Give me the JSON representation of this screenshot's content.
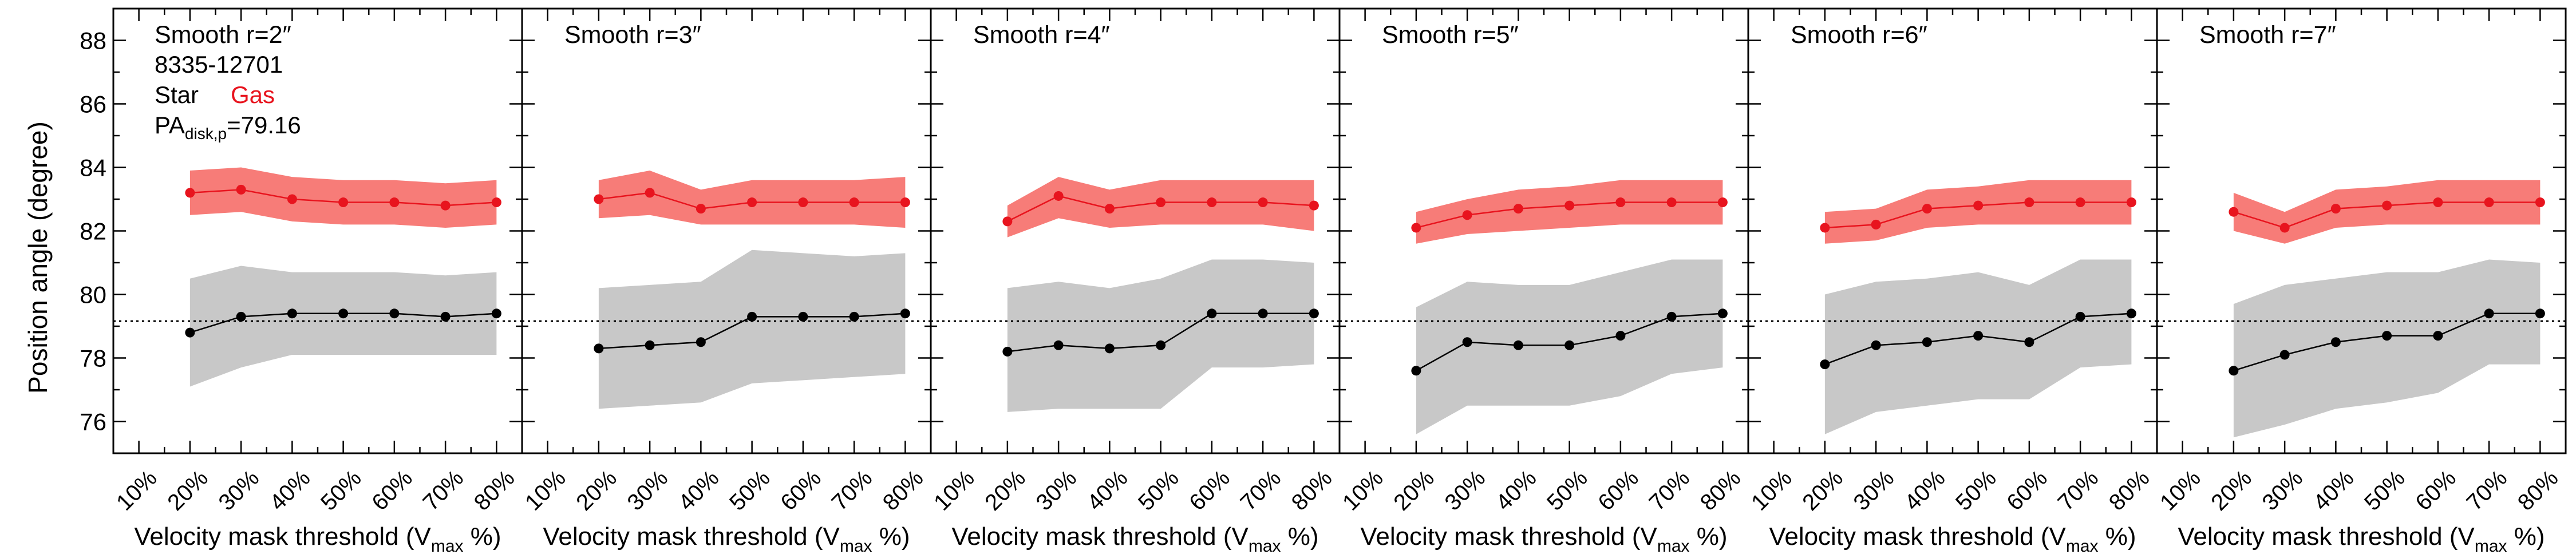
{
  "figure": {
    "ylabel": "Position angle (degree)",
    "xlabel_main": "Velocity mask threshold (V",
    "xlabel_sub": "max",
    "xlabel_end": " %)",
    "x_tick_labels": [
      "10%",
      "20%",
      "30%",
      "40%",
      "50%",
      "60%",
      "70%",
      "80%"
    ],
    "y_tick_labels": [
      "76",
      "78",
      "80",
      "82",
      "84",
      "86",
      "88"
    ],
    "legend": {
      "galaxy_id": "8335-12701",
      "star_label": "Star",
      "gas_label": "Gas",
      "pa_prefix": "PA",
      "pa_sub": "disk,p",
      "pa_suffix": "=79.16"
    },
    "colors": {
      "star_line": "#000000",
      "star_band": "#c8c8c8",
      "gas_line": "#e8141e",
      "gas_band": "#f77c78",
      "reference_line": "#000000"
    }
  },
  "chart_data": [
    {
      "type": "line",
      "title": "Smooth r=2″",
      "xlabel": "Velocity mask threshold (Vmax %)",
      "ylabel": "Position angle (degree)",
      "x": [
        20,
        30,
        40,
        50,
        60,
        70,
        80
      ],
      "xlim": [
        5,
        85
      ],
      "ylim": [
        75,
        89
      ],
      "reference_y": 79.16,
      "series": [
        {
          "name": "Star",
          "values": [
            78.8,
            79.3,
            79.4,
            79.4,
            79.4,
            79.3,
            79.4
          ],
          "lower": [
            77.1,
            77.7,
            78.1,
            78.1,
            78.1,
            78.1,
            78.1
          ],
          "upper": [
            80.5,
            80.9,
            80.7,
            80.7,
            80.7,
            80.6,
            80.7
          ]
        },
        {
          "name": "Gas",
          "values": [
            83.2,
            83.3,
            83.0,
            82.9,
            82.9,
            82.8,
            82.9
          ],
          "lower": [
            82.5,
            82.6,
            82.3,
            82.2,
            82.2,
            82.1,
            82.2
          ],
          "upper": [
            83.9,
            84.0,
            83.7,
            83.6,
            83.6,
            83.5,
            83.6
          ]
        }
      ]
    },
    {
      "type": "line",
      "title": "Smooth r=3″",
      "xlabel": "Velocity mask threshold (Vmax %)",
      "x": [
        20,
        30,
        40,
        50,
        60,
        70,
        80
      ],
      "xlim": [
        5,
        85
      ],
      "ylim": [
        75,
        89
      ],
      "reference_y": 79.16,
      "series": [
        {
          "name": "Star",
          "values": [
            78.3,
            78.4,
            78.5,
            79.3,
            79.3,
            79.3,
            79.4
          ],
          "lower": [
            76.4,
            76.5,
            76.6,
            77.2,
            77.3,
            77.4,
            77.5
          ],
          "upper": [
            80.2,
            80.3,
            80.4,
            81.4,
            81.3,
            81.2,
            81.3
          ]
        },
        {
          "name": "Gas",
          "values": [
            83.0,
            83.2,
            82.7,
            82.9,
            82.9,
            82.9,
            82.9
          ],
          "lower": [
            82.4,
            82.5,
            82.2,
            82.2,
            82.2,
            82.2,
            82.1
          ],
          "upper": [
            83.6,
            83.9,
            83.3,
            83.6,
            83.6,
            83.6,
            83.7
          ]
        }
      ]
    },
    {
      "type": "line",
      "title": "Smooth r=4″",
      "xlabel": "Velocity mask threshold (Vmax %)",
      "x": [
        20,
        30,
        40,
        50,
        60,
        70,
        80
      ],
      "xlim": [
        5,
        85
      ],
      "ylim": [
        75,
        89
      ],
      "reference_y": 79.16,
      "series": [
        {
          "name": "Star",
          "values": [
            78.2,
            78.4,
            78.3,
            78.4,
            79.4,
            79.4,
            79.4
          ],
          "lower": [
            76.3,
            76.4,
            76.4,
            76.4,
            77.7,
            77.7,
            77.8
          ],
          "upper": [
            80.2,
            80.4,
            80.2,
            80.5,
            81.1,
            81.1,
            81.0
          ]
        },
        {
          "name": "Gas",
          "values": [
            82.3,
            83.1,
            82.7,
            82.9,
            82.9,
            82.9,
            82.8
          ],
          "lower": [
            81.8,
            82.4,
            82.1,
            82.2,
            82.2,
            82.2,
            82.0
          ],
          "upper": [
            82.8,
            83.7,
            83.3,
            83.6,
            83.6,
            83.6,
            83.6
          ]
        }
      ]
    },
    {
      "type": "line",
      "title": "Smooth r=5″",
      "xlabel": "Velocity mask threshold (Vmax %)",
      "x": [
        20,
        30,
        40,
        50,
        60,
        70,
        80
      ],
      "xlim": [
        5,
        85
      ],
      "ylim": [
        75,
        89
      ],
      "reference_y": 79.16,
      "series": [
        {
          "name": "Star",
          "values": [
            77.6,
            78.5,
            78.4,
            78.4,
            78.7,
            79.3,
            79.4
          ],
          "lower": [
            75.6,
            76.5,
            76.5,
            76.5,
            76.8,
            77.5,
            77.7
          ],
          "upper": [
            79.6,
            80.4,
            80.3,
            80.3,
            80.7,
            81.1,
            81.1
          ]
        },
        {
          "name": "Gas",
          "values": [
            82.1,
            82.5,
            82.7,
            82.8,
            82.9,
            82.9,
            82.9
          ],
          "lower": [
            81.6,
            81.9,
            82.0,
            82.1,
            82.2,
            82.2,
            82.2
          ],
          "upper": [
            82.6,
            83.0,
            83.3,
            83.4,
            83.6,
            83.6,
            83.6
          ]
        }
      ]
    },
    {
      "type": "line",
      "title": "Smooth r=6″",
      "xlabel": "Velocity mask threshold (Vmax %)",
      "x": [
        20,
        30,
        40,
        50,
        60,
        70,
        80
      ],
      "xlim": [
        5,
        85
      ],
      "ylim": [
        75,
        89
      ],
      "reference_y": 79.16,
      "series": [
        {
          "name": "Star",
          "values": [
            77.8,
            78.4,
            78.5,
            78.7,
            78.5,
            79.3,
            79.4
          ],
          "lower": [
            75.6,
            76.3,
            76.5,
            76.7,
            76.7,
            77.7,
            77.8
          ],
          "upper": [
            80.0,
            80.4,
            80.5,
            80.7,
            80.3,
            81.1,
            81.1
          ]
        },
        {
          "name": "Gas",
          "values": [
            82.1,
            82.2,
            82.7,
            82.8,
            82.9,
            82.9,
            82.9
          ],
          "lower": [
            81.6,
            81.7,
            82.1,
            82.2,
            82.2,
            82.2,
            82.2
          ],
          "upper": [
            82.6,
            82.7,
            83.3,
            83.4,
            83.6,
            83.6,
            83.6
          ]
        }
      ]
    },
    {
      "type": "line",
      "title": "Smooth r=7″",
      "xlabel": "Velocity mask threshold (Vmax %)",
      "x": [
        20,
        30,
        40,
        50,
        60,
        70,
        80
      ],
      "xlim": [
        5,
        85
      ],
      "ylim": [
        75,
        89
      ],
      "reference_y": 79.16,
      "series": [
        {
          "name": "Star",
          "values": [
            77.6,
            78.1,
            78.5,
            78.7,
            78.7,
            79.4,
            79.4
          ],
          "lower": [
            75.5,
            75.9,
            76.4,
            76.6,
            76.9,
            77.8,
            77.8
          ],
          "upper": [
            79.7,
            80.3,
            80.5,
            80.7,
            80.7,
            81.1,
            81.0
          ]
        },
        {
          "name": "Gas",
          "values": [
            82.6,
            82.1,
            82.7,
            82.8,
            82.9,
            82.9,
            82.9
          ],
          "lower": [
            82.0,
            81.6,
            82.1,
            82.2,
            82.2,
            82.2,
            82.2
          ],
          "upper": [
            83.2,
            82.6,
            83.3,
            83.4,
            83.6,
            83.6,
            83.6
          ]
        }
      ]
    }
  ]
}
